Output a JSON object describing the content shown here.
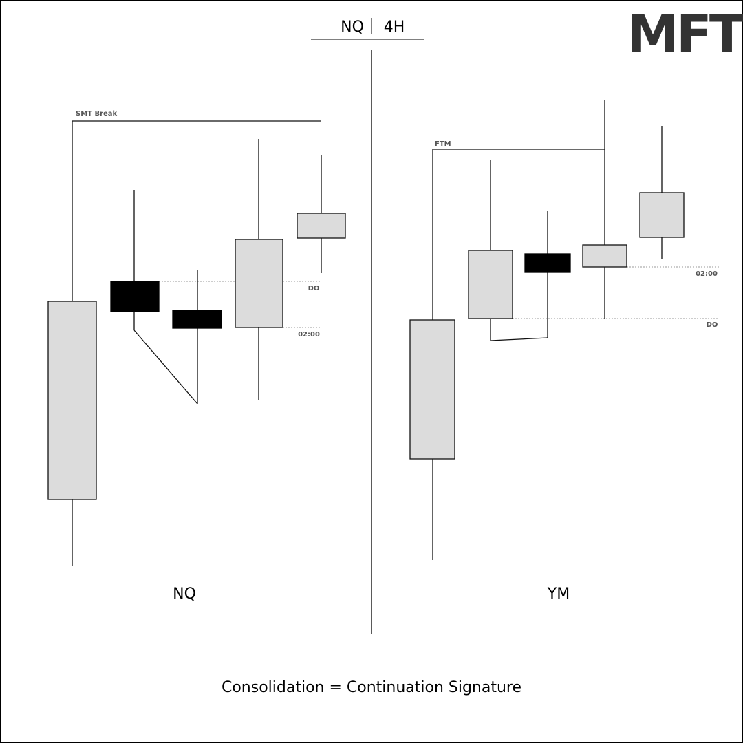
{
  "header": {
    "left": "NQ",
    "right": "4H"
  },
  "logo": "MFT",
  "panels": [
    {
      "label": "NQ",
      "top_annotation": "SMT Break",
      "levels": [
        "DO",
        "02:00"
      ]
    },
    {
      "label": "YM",
      "top_annotation": "FTM",
      "levels": [
        "02:00",
        "DO"
      ]
    }
  ],
  "footer": "Consolidation = Continuation Signature"
}
